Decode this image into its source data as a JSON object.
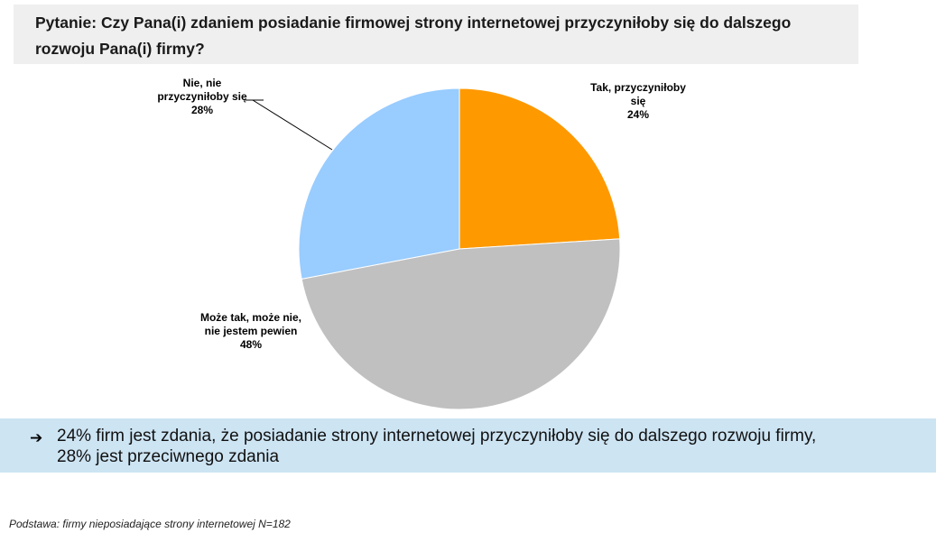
{
  "question": {
    "line1": "Pytanie: Czy Pana(i) zdaniem posiadanie firmowej strony internetowej przyczyniłoby się do dalszego",
    "line2": "rozwoju Pana(i) firmy?"
  },
  "chart_data": {
    "type": "pie",
    "title": "",
    "slices": [
      {
        "label_lines": [
          "Tak, przyczyniłoby",
          "się"
        ],
        "value": 24,
        "value_label": "24%",
        "color": "#ff9900"
      },
      {
        "label_lines": [
          "Może tak, może nie,",
          "nie jestem pewien"
        ],
        "value": 48,
        "value_label": "48%",
        "color": "#c0c0c0"
      },
      {
        "label_lines": [
          "Nie, nie",
          "przyczyniłoby się"
        ],
        "value": 28,
        "value_label": "28%",
        "color": "#99ccff"
      }
    ],
    "start": "12 o'clock",
    "direction": "clockwise"
  },
  "conclusion": {
    "arrow": "➔",
    "line1": "24% firm jest zdania, że posiadanie strony internetowej przyczyniłoby się do dalszego rozwoju firmy,",
    "line2": "28% jest przeciwnego zdania"
  },
  "footnote": "Podstawa: firmy nieposiadające strony internetowej N=182"
}
